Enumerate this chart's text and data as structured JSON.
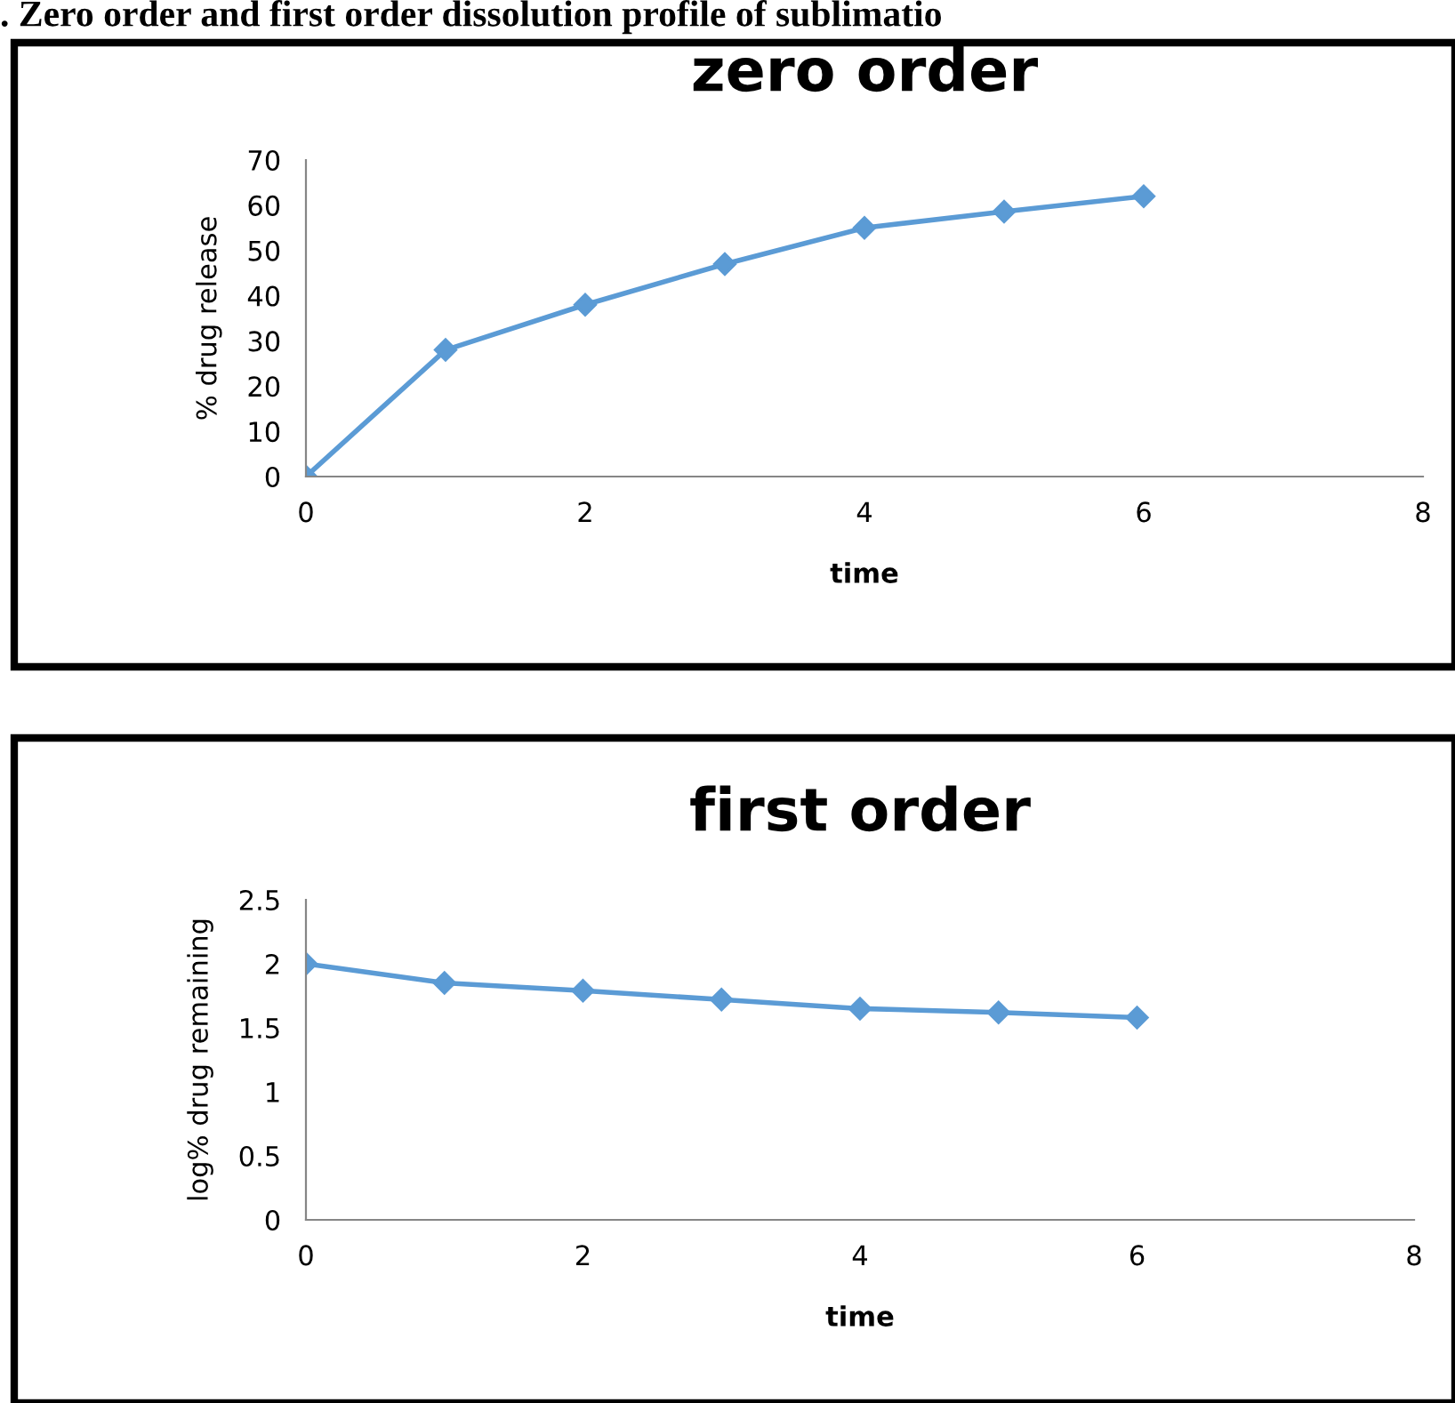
{
  "chart_data": [
    {
      "type": "line",
      "title": "zero order",
      "xlabel": "time",
      "ylabel": "% drug release",
      "annotations": [
        ". Zero order and first order dissolution profile of sublimatio"
      ],
      "x": [
        0,
        1,
        2,
        3,
        4,
        5,
        6
      ],
      "series": [
        {
          "color": "#5b9bd5",
          "values": [
            0,
            28,
            38,
            47,
            55,
            58.6,
            62
          ]
        }
      ],
      "xlim": [
        0,
        8
      ],
      "xticks": [
        0,
        2,
        4,
        6,
        8
      ],
      "ylim": [
        0,
        70
      ],
      "yticks": [
        0,
        10,
        20,
        30,
        40,
        50,
        60,
        70
      ],
      "marker": "diamond",
      "line_style": "solid",
      "grid": false,
      "legend": false
    },
    {
      "type": "line",
      "title": "first order",
      "xlabel": "time",
      "ylabel": "log% drug remaining",
      "x": [
        0,
        1,
        2,
        3,
        4,
        5,
        6
      ],
      "series": [
        {
          "color": "#5b9bd5",
          "values": [
            2.0,
            1.85,
            1.79,
            1.72,
            1.65,
            1.62,
            1.58
          ]
        }
      ],
      "xlim": [
        0,
        8
      ],
      "xticks": [
        0,
        2,
        4,
        6,
        8
      ],
      "ylim": [
        0,
        2.5
      ],
      "yticks": [
        0,
        0.5,
        1,
        1.5,
        2,
        2.5
      ],
      "marker": "diamond",
      "line_style": "solid",
      "grid": false,
      "legend": false
    }
  ]
}
